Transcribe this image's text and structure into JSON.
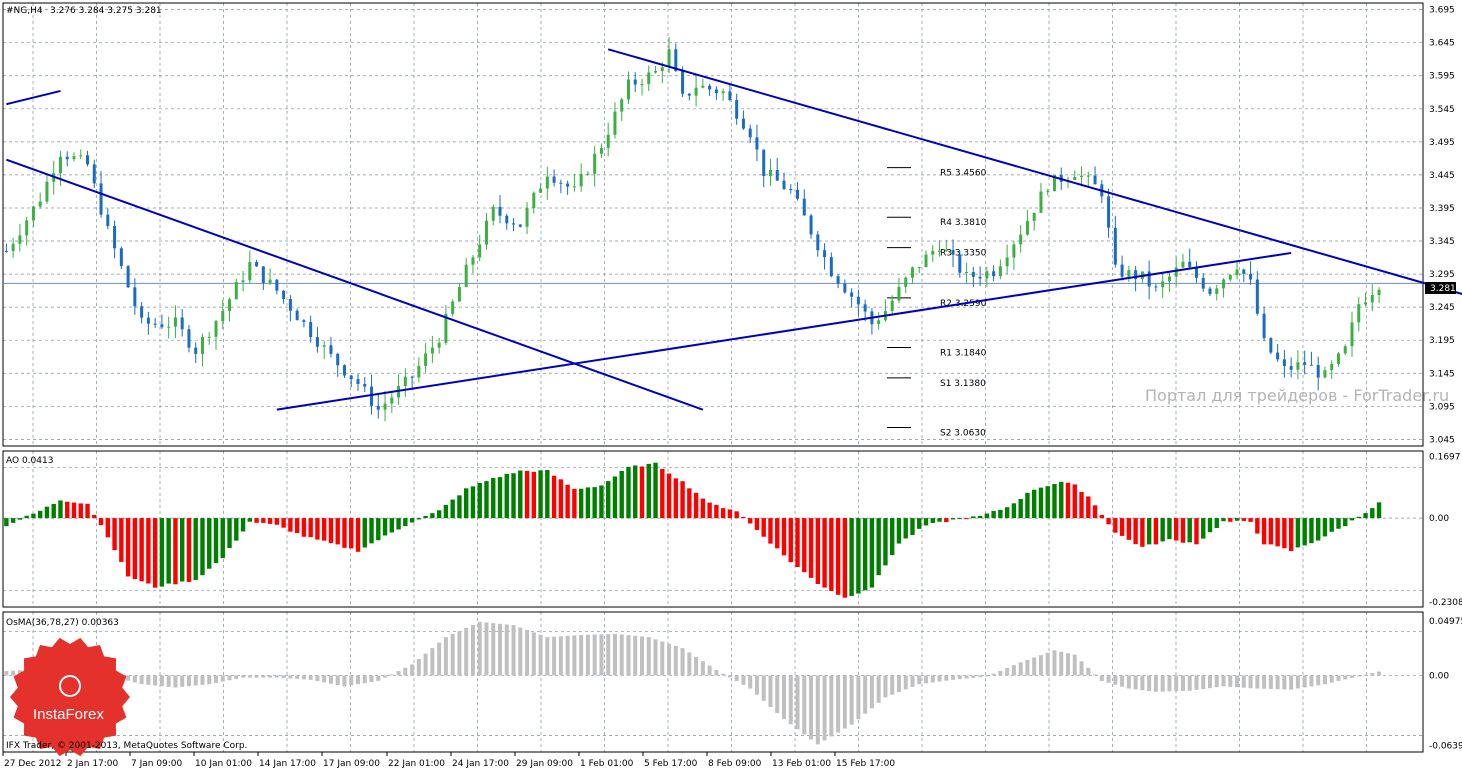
{
  "header": {
    "symbol": "#NG,H4",
    "ohlc": "3.276 3.284 3.275 3.281"
  },
  "ao_label": "AO 0.0413",
  "osma_label": "OsMA(36,78,27) 0.00363",
  "copyright": "IFX Trader, © 2001-2013, MetaQuotes Software Corp.",
  "watermark": "Портал для трейдеров - ForTrader.ru",
  "logo_text": "InstaForex",
  "current_price_label": "3.281",
  "pivots": [
    {
      "label": "R5 3.4560",
      "value": 3.456
    },
    {
      "label": "R4 3.3810",
      "value": 3.381
    },
    {
      "label": "R3 3.3350",
      "value": 3.335
    },
    {
      "label": "R2 3.2590",
      "value": 3.259
    },
    {
      "label": "R1 3.1840",
      "value": 3.184
    },
    {
      "label": "S1 3.1380",
      "value": 3.138
    },
    {
      "label": "S2 3.0630",
      "value": 3.063
    }
  ],
  "colors": {
    "bull": "#3cb043",
    "bear": "#1a6bc4",
    "ao_up": "#008000",
    "ao_down": "#ff0000",
    "osma": "#c0c0c0",
    "trend": "#0000c0",
    "grid": "#8090a0",
    "current_line": "#6f8fbf",
    "logo": "#e4312b"
  },
  "chart_data": {
    "type": "candlestick",
    "y_ticks": [
      "3.695",
      "3.645",
      "3.595",
      "3.545",
      "3.495",
      "3.445",
      "3.395",
      "3.345",
      "3.295",
      "3.245",
      "3.195",
      "3.145",
      "3.095",
      "3.045"
    ],
    "ylim": [
      3.045,
      3.695
    ],
    "x_ticks": [
      "27 Dec 2012",
      "2 Jan 17:00",
      "7 Jan 09:00",
      "10 Jan 01:00",
      "14 Jan 17:00",
      "17 Jan 09:00",
      "22 Jan 01:00",
      "24 Jan 17:00",
      "29 Jan 09:00",
      "1 Feb 01:00",
      "5 Feb 17:00",
      "8 Feb 09:00",
      "13 Feb 01:00",
      "15 Feb 17:00"
    ],
    "ao_ticks": [
      "0.1697",
      "0.00",
      "-0.2308"
    ],
    "osma_ticks": [
      "0.04975",
      "0.00",
      "-0.0639"
    ],
    "close_path": [
      [
        0,
        3.33
      ],
      [
        5,
        3.41
      ],
      [
        8,
        3.48
      ],
      [
        12,
        3.46
      ],
      [
        15,
        3.36
      ],
      [
        20,
        3.22
      ],
      [
        25,
        3.22
      ],
      [
        28,
        3.18
      ],
      [
        32,
        3.24
      ],
      [
        36,
        3.31
      ],
      [
        40,
        3.27
      ],
      [
        44,
        3.22
      ],
      [
        48,
        3.17
      ],
      [
        52,
        3.13
      ],
      [
        55,
        3.09
      ],
      [
        57,
        3.11
      ],
      [
        60,
        3.14
      ],
      [
        64,
        3.2
      ],
      [
        68,
        3.3
      ],
      [
        72,
        3.39
      ],
      [
        76,
        3.37
      ],
      [
        80,
        3.45
      ],
      [
        84,
        3.42
      ],
      [
        88,
        3.49
      ],
      [
        92,
        3.58
      ],
      [
        96,
        3.6
      ],
      [
        98,
        3.63
      ],
      [
        100,
        3.56
      ],
      [
        102,
        3.58
      ],
      [
        106,
        3.57
      ],
      [
        110,
        3.51
      ],
      [
        112,
        3.45
      ],
      [
        116,
        3.42
      ],
      [
        118,
        3.38
      ],
      [
        122,
        3.3
      ],
      [
        126,
        3.25
      ],
      [
        128,
        3.22
      ],
      [
        130,
        3.24
      ],
      [
        134,
        3.3
      ],
      [
        138,
        3.34
      ],
      [
        142,
        3.29
      ],
      [
        146,
        3.3
      ],
      [
        150,
        3.36
      ],
      [
        154,
        3.43
      ],
      [
        158,
        3.45
      ],
      [
        162,
        3.42
      ],
      [
        164,
        3.3
      ],
      [
        168,
        3.29
      ],
      [
        170,
        3.27
      ],
      [
        174,
        3.31
      ],
      [
        178,
        3.27
      ],
      [
        182,
        3.31
      ],
      [
        184,
        3.28
      ],
      [
        186,
        3.19
      ],
      [
        189,
        3.15
      ],
      [
        192,
        3.16
      ],
      [
        195,
        3.14
      ],
      [
        198,
        3.18
      ],
      [
        200,
        3.25
      ],
      [
        203,
        3.281
      ]
    ],
    "ao_path": [
      [
        0,
        -0.02
      ],
      [
        5,
        0.02
      ],
      [
        8,
        0.05
      ],
      [
        12,
        0.04
      ],
      [
        15,
        -0.05
      ],
      [
        18,
        -0.16
      ],
      [
        22,
        -0.19
      ],
      [
        28,
        -0.17
      ],
      [
        32,
        -0.11
      ],
      [
        36,
        -0.01
      ],
      [
        40,
        -0.02
      ],
      [
        44,
        -0.05
      ],
      [
        48,
        -0.07
      ],
      [
        52,
        -0.09
      ],
      [
        55,
        -0.06
      ],
      [
        60,
        -0.01
      ],
      [
        64,
        0.02
      ],
      [
        68,
        0.08
      ],
      [
        72,
        0.11
      ],
      [
        76,
        0.13
      ],
      [
        80,
        0.13
      ],
      [
        84,
        0.08
      ],
      [
        88,
        0.09
      ],
      [
        92,
        0.14
      ],
      [
        96,
        0.15
      ],
      [
        100,
        0.1
      ],
      [
        104,
        0.04
      ],
      [
        108,
        0.02
      ],
      [
        112,
        -0.05
      ],
      [
        116,
        -0.12
      ],
      [
        120,
        -0.18
      ],
      [
        124,
        -0.22
      ],
      [
        128,
        -0.19
      ],
      [
        132,
        -0.07
      ],
      [
        136,
        -0.02
      ],
      [
        140,
        -0.005
      ],
      [
        144,
        0.005
      ],
      [
        148,
        0.03
      ],
      [
        152,
        0.08
      ],
      [
        156,
        0.1
      ],
      [
        158,
        0.09
      ],
      [
        160,
        0.06
      ],
      [
        164,
        -0.04
      ],
      [
        168,
        -0.08
      ],
      [
        172,
        -0.06
      ],
      [
        176,
        -0.07
      ],
      [
        180,
        -0.01
      ],
      [
        184,
        -0.01
      ],
      [
        186,
        -0.07
      ],
      [
        190,
        -0.09
      ],
      [
        194,
        -0.06
      ],
      [
        198,
        -0.02
      ],
      [
        203,
        0.0413
      ]
    ],
    "osma_path": [
      [
        0,
        0.004
      ],
      [
        10,
        0.008
      ],
      [
        15,
        0.0
      ],
      [
        20,
        -0.008
      ],
      [
        25,
        -0.011
      ],
      [
        30,
        -0.008
      ],
      [
        35,
        -0.002
      ],
      [
        40,
        -0.002
      ],
      [
        45,
        -0.004
      ],
      [
        50,
        -0.01
      ],
      [
        55,
        -0.005
      ],
      [
        60,
        0.01
      ],
      [
        65,
        0.035
      ],
      [
        70,
        0.049
      ],
      [
        75,
        0.046
      ],
      [
        80,
        0.035
      ],
      [
        85,
        0.037
      ],
      [
        90,
        0.038
      ],
      [
        95,
        0.035
      ],
      [
        100,
        0.025
      ],
      [
        105,
        0.005
      ],
      [
        110,
        -0.012
      ],
      [
        115,
        -0.04
      ],
      [
        120,
        -0.063
      ],
      [
        125,
        -0.045
      ],
      [
        130,
        -0.02
      ],
      [
        135,
        -0.008
      ],
      [
        140,
        -0.004
      ],
      [
        145,
        -0.001
      ],
      [
        150,
        0.012
      ],
      [
        155,
        0.023
      ],
      [
        158,
        0.019
      ],
      [
        162,
        -0.005
      ],
      [
        166,
        -0.012
      ],
      [
        170,
        -0.015
      ],
      [
        175,
        -0.014
      ],
      [
        180,
        -0.01
      ],
      [
        185,
        -0.012
      ],
      [
        190,
        -0.013
      ],
      [
        195,
        -0.008
      ],
      [
        203,
        0.00363
      ]
    ],
    "trendlines": [
      {
        "from": [
          0,
          3.468
        ],
        "to": [
          103,
          3.09
        ]
      },
      {
        "from": [
          40,
          3.09
        ],
        "to": [
          190,
          3.327
        ]
      },
      {
        "from": [
          89,
          3.635
        ],
        "to": [
          218,
          3.257
        ]
      },
      {
        "from": [
          0,
          3.552
        ],
        "to": [
          8,
          3.572
        ]
      }
    ]
  }
}
